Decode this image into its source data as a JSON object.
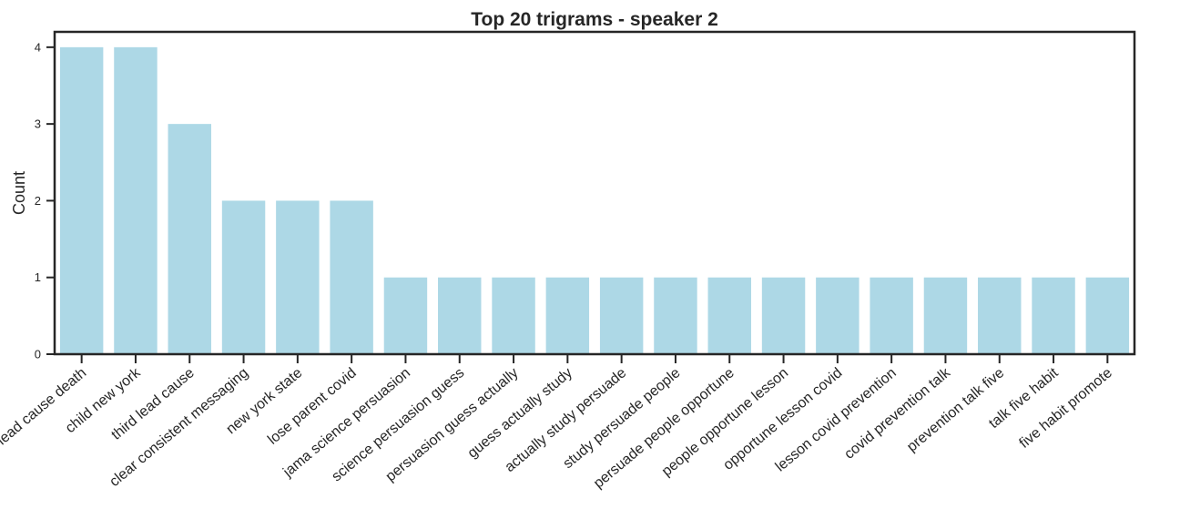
{
  "chart_data": {
    "type": "bar",
    "title": "Top 20 trigrams - speaker 2",
    "xlabel": "",
    "ylabel": "Count",
    "ylim": [
      0,
      4.2
    ],
    "yticks": [
      0,
      1,
      2,
      3,
      4
    ],
    "grid": false,
    "bar_color": "#add8e6",
    "categories": [
      "lead cause death",
      "child new york",
      "third lead cause",
      "clear consistent messaging",
      "new york state",
      "lose parent covid",
      "jama science persuasion",
      "science persuasion guess",
      "persuasion guess actually",
      "guess actually study",
      "actually study persuade",
      "study persuade people",
      "persuade people opportune",
      "people opportune lesson",
      "opportune lesson covid",
      "lesson covid prevention",
      "covid prevention talk",
      "prevention talk five",
      "talk five habit",
      "five habit promote"
    ],
    "values": [
      4,
      4,
      3,
      2,
      2,
      2,
      1,
      1,
      1,
      1,
      1,
      1,
      1,
      1,
      1,
      1,
      1,
      1,
      1,
      1
    ]
  }
}
